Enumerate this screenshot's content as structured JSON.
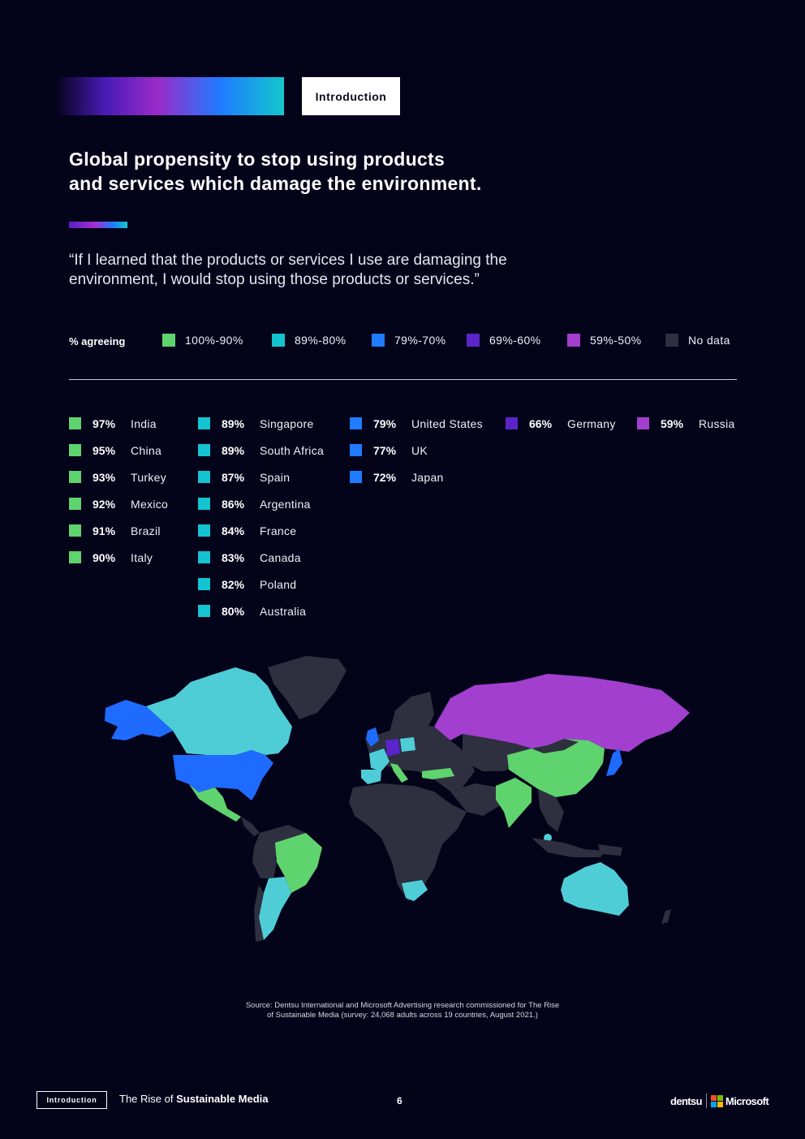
{
  "header": {
    "section_tag": "Introduction",
    "title_line1": "Global propensity to stop using products",
    "title_line2": "and services which damage the environment.",
    "quote_line1": "“If I learned that the products or services I use are damaging the",
    "quote_line2": "environment, I would stop using those products or services.”"
  },
  "legend": {
    "title": "% agreeing",
    "items": [
      {
        "label": "100%-90%",
        "color": "#5fd36d"
      },
      {
        "label": "89%-80%",
        "color": "#14c3d0"
      },
      {
        "label": "79%-70%",
        "color": "#1f7bff"
      },
      {
        "label": "69%-60%",
        "color": "#5a24c8"
      },
      {
        "label": "59%-50%",
        "color": "#a23fce"
      },
      {
        "label": "No data",
        "color": "#2e3040"
      }
    ]
  },
  "countries": {
    "green": [
      {
        "pct": "97%",
        "name": "India"
      },
      {
        "pct": "95%",
        "name": "China"
      },
      {
        "pct": "93%",
        "name": "Turkey"
      },
      {
        "pct": "92%",
        "name": "Mexico"
      },
      {
        "pct": "91%",
        "name": "Brazil"
      },
      {
        "pct": "90%",
        "name": "Italy"
      }
    ],
    "cyan": [
      {
        "pct": "89%",
        "name": "Singapore"
      },
      {
        "pct": "89%",
        "name": "South Africa"
      },
      {
        "pct": "87%",
        "name": "Spain"
      },
      {
        "pct": "86%",
        "name": "Argentina"
      },
      {
        "pct": "84%",
        "name": "France"
      },
      {
        "pct": "83%",
        "name": "Canada"
      },
      {
        "pct": "82%",
        "name": "Poland"
      },
      {
        "pct": "80%",
        "name": "Australia"
      }
    ],
    "blue": [
      {
        "pct": "79%",
        "name": "United States"
      },
      {
        "pct": "77%",
        "name": "UK"
      },
      {
        "pct": "72%",
        "name": "Japan"
      }
    ],
    "indigo": [
      {
        "pct": "66%",
        "name": "Germany"
      }
    ],
    "purple": [
      {
        "pct": "59%",
        "name": "Russia"
      }
    ]
  },
  "source": {
    "line1": "Source: Dentsu International and Microsoft Advertising research commissioned for The Rise",
    "line2": "of Sustainable Media (survey: 24,068 adults across 19 countries, August 2021.)"
  },
  "footer": {
    "section_tag": "Introduction",
    "title_regular": "The Rise of ",
    "title_bold": "Sustainable Media",
    "page_number": "6",
    "logo_dentsu": "dentsu",
    "logo_microsoft": "Microsoft"
  }
}
